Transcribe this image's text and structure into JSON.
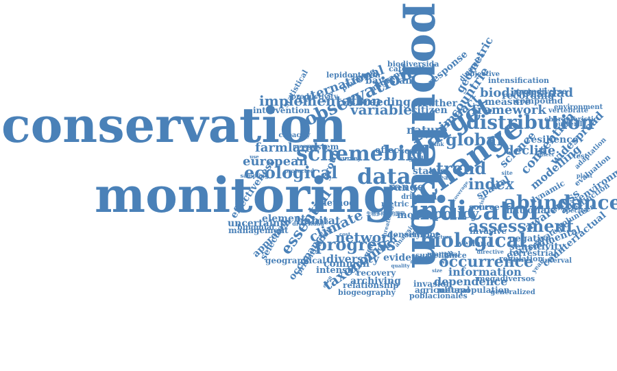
{
  "color": "#4a81b8",
  "words": [
    "conservation",
    "monitoring",
    "population",
    "change",
    "indicator",
    "schemebird",
    "target",
    "distribution",
    "observation",
    "biological",
    "data",
    "assessment",
    "abundance",
    "ecological",
    "progress",
    "global",
    "implementation",
    "european",
    "climate",
    "essential",
    "trend",
    "policy",
    "index",
    "network",
    "variable",
    "framework",
    "international",
    "occurrence",
    "taxonomic",
    "biodiversidad",
    "impact",
    "geometric",
    "countrie",
    "breeding",
    "farmland",
    "nature",
    "decline",
    "information",
    "dependence",
    "diversity",
    "habitat",
    "model",
    "measure",
    "recording",
    "citizen",
    "weather",
    "resilience",
    "convention",
    "modelling",
    "widespread",
    "agrienvironmental",
    "counterfactual",
    "awareness",
    "national",
    "sensitivity",
    "spatial",
    "range",
    "term",
    "status",
    "effectiveness",
    "uncertainty",
    "management",
    "element",
    "approach",
    "selection",
    "occupancy",
    "common",
    "intensity",
    "evidence",
    "archiving",
    "recovery",
    "invasion",
    "agricultural",
    "metapopulation",
    "biogeography",
    "relationship",
    "poblacionales",
    "megadiversos",
    "environmental",
    "terrestrial",
    "negative",
    "regulation",
    "wetland",
    "invasive",
    "surveillance",
    "megadiverse",
    "compound",
    "intensification",
    "response",
    "migrant",
    "bayesian",
    "caterpillar",
    "biodiversida",
    "lepidopteron",
    "planning",
    "statistical",
    "intervention",
    "binomial",
    "geographical",
    "method",
    "group",
    "science",
    "source",
    "effect",
    "system",
    "density",
    "europe",
    "metric",
    "scale",
    "area",
    "interval",
    "prioritization",
    "strategic",
    "dynamic",
    "volunteer",
    "extinction",
    "evaluation",
    "adaptation",
    "vertebrate",
    "butterfly",
    "characteristic",
    "environment",
    "structure",
    "directive",
    "generalized",
    "productivity",
    "protected",
    "objective",
    "threatened",
    "pressure",
    "diversidad",
    "dinamica",
    "insect",
    "species",
    "mammal",
    "plant",
    "coverage",
    "sampling",
    "survey",
    "analysis",
    "quality",
    "capacity",
    "driver",
    "threat",
    "gap",
    "tool",
    "goal",
    "site",
    "land",
    "use",
    "year",
    "plan",
    "risk",
    "size",
    "zero",
    "rate",
    "loss",
    "open",
    "link",
    "path",
    "cost",
    "gene",
    "test",
    "生物多样性的国家"
  ]
}
